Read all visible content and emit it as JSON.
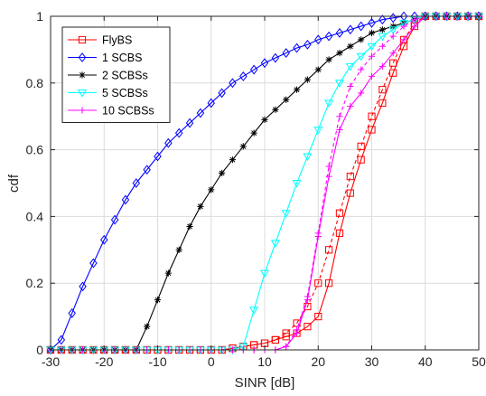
{
  "chart_data": {
    "type": "line",
    "title": "",
    "xlabel": "SINR [dB]",
    "ylabel": "cdf",
    "xlim": [
      -30,
      50
    ],
    "ylim": [
      0,
      1
    ],
    "xticks": [
      -30,
      -20,
      -10,
      0,
      10,
      20,
      30,
      40,
      50
    ],
    "yticks": [
      0,
      0.2,
      0.4,
      0.6,
      0.8,
      1
    ],
    "grid": true,
    "legend_position": "top-left",
    "series": [
      {
        "name": "FlyBS",
        "color": "#ff0000",
        "marker": "square",
        "line": "solid",
        "x": [
          -30,
          -28,
          -26,
          -24,
          -22,
          -20,
          -18,
          -16,
          -14,
          -12,
          -10,
          -8,
          -6,
          -4,
          -2,
          0,
          2,
          4,
          6,
          8,
          10,
          12,
          14,
          16,
          18,
          20,
          22,
          24,
          26,
          28,
          30,
          32,
          34,
          36,
          38,
          40,
          42,
          44,
          46,
          48,
          50
        ],
        "y": [
          0,
          0,
          0,
          0,
          0,
          0,
          0,
          0,
          0,
          0,
          0,
          0,
          0,
          0,
          0,
          0,
          0,
          0.005,
          0.01,
          0.015,
          0.02,
          0.03,
          0.04,
          0.05,
          0.07,
          0.1,
          0.2,
          0.35,
          0.47,
          0.57,
          0.66,
          0.74,
          0.83,
          0.91,
          0.97,
          1,
          1,
          1,
          1,
          1,
          1
        ]
      },
      {
        "name": "",
        "color": "#ff0000",
        "marker": "square",
        "line": "dashed",
        "x": [
          -30,
          -28,
          -26,
          -24,
          -22,
          -20,
          -18,
          -16,
          -14,
          -12,
          -10,
          -8,
          -6,
          -4,
          -2,
          0,
          2,
          4,
          6,
          8,
          10,
          12,
          14,
          16,
          18,
          20,
          22,
          24,
          26,
          28,
          30,
          32,
          34,
          36,
          38,
          40,
          42,
          44,
          46,
          48,
          50
        ],
        "y": [
          0,
          0,
          0,
          0,
          0,
          0,
          0,
          0,
          0,
          0,
          0,
          0,
          0,
          0,
          0,
          0,
          0,
          0.005,
          0.01,
          0.015,
          0.02,
          0.03,
          0.05,
          0.08,
          0.13,
          0.2,
          0.3,
          0.41,
          0.52,
          0.61,
          0.7,
          0.78,
          0.86,
          0.93,
          0.98,
          1,
          1,
          1,
          1,
          1,
          1
        ]
      },
      {
        "name": "1 SCBS",
        "color": "#0000ff",
        "marker": "diamond",
        "line": "solid",
        "x": [
          -30,
          -28,
          -26,
          -24,
          -22,
          -20,
          -18,
          -16,
          -14,
          -12,
          -10,
          -8,
          -6,
          -4,
          -2,
          0,
          2,
          4,
          6,
          8,
          10,
          12,
          14,
          16,
          18,
          20,
          22,
          24,
          26,
          28,
          30,
          32,
          34,
          36,
          38,
          40,
          42,
          44,
          46,
          48,
          50
        ],
        "y": [
          0,
          0.03,
          0.11,
          0.19,
          0.26,
          0.33,
          0.39,
          0.45,
          0.5,
          0.54,
          0.58,
          0.62,
          0.65,
          0.68,
          0.71,
          0.74,
          0.77,
          0.8,
          0.82,
          0.84,
          0.86,
          0.875,
          0.89,
          0.905,
          0.915,
          0.93,
          0.94,
          0.95,
          0.96,
          0.97,
          0.98,
          0.99,
          0.995,
          1,
          1,
          1,
          1,
          1,
          1,
          1,
          1
        ]
      },
      {
        "name": "2 SCBSs",
        "color": "#000000",
        "marker": "star",
        "line": "solid",
        "x": [
          -30,
          -28,
          -26,
          -24,
          -22,
          -20,
          -18,
          -16,
          -14,
          -12,
          -10,
          -8,
          -6,
          -4,
          -2,
          0,
          2,
          4,
          6,
          8,
          10,
          12,
          14,
          16,
          18,
          20,
          22,
          24,
          26,
          28,
          30,
          32,
          34,
          36,
          38,
          40,
          42,
          44,
          46,
          48,
          50
        ],
        "y": [
          0,
          0,
          0,
          0,
          0,
          0,
          0,
          0,
          0,
          0.07,
          0.15,
          0.23,
          0.3,
          0.37,
          0.43,
          0.48,
          0.53,
          0.57,
          0.61,
          0.65,
          0.69,
          0.72,
          0.75,
          0.78,
          0.81,
          0.84,
          0.87,
          0.89,
          0.91,
          0.93,
          0.95,
          0.96,
          0.97,
          0.98,
          0.99,
          1,
          1,
          1,
          1,
          1,
          1
        ]
      },
      {
        "name": "5 SCBSs",
        "color": "#00ffff",
        "marker": "triangle-down",
        "line": "solid",
        "x": [
          -30,
          -28,
          -26,
          -24,
          -22,
          -20,
          -18,
          -16,
          -14,
          -12,
          -10,
          -8,
          -6,
          -4,
          -2,
          0,
          2,
          4,
          6,
          8,
          10,
          12,
          14,
          16,
          18,
          20,
          22,
          24,
          26,
          28,
          30,
          32,
          34,
          36,
          38,
          40,
          42,
          44,
          46,
          48,
          50
        ],
        "y": [
          0,
          0,
          0,
          0,
          0,
          0,
          0,
          0,
          0,
          0,
          0,
          0,
          0,
          0,
          0,
          0,
          0,
          0,
          0.01,
          0.12,
          0.23,
          0.32,
          0.41,
          0.5,
          0.58,
          0.66,
          0.74,
          0.8,
          0.85,
          0.88,
          0.91,
          0.94,
          0.96,
          0.98,
          0.99,
          1,
          1,
          1,
          1,
          1,
          1
        ]
      },
      {
        "name": "10 SCBSs",
        "color": "#ff00ff",
        "marker": "plus",
        "line": "solid",
        "x": [
          -30,
          -28,
          -26,
          -24,
          -22,
          -20,
          -18,
          -16,
          -14,
          -12,
          -10,
          -8,
          -6,
          -4,
          -2,
          0,
          2,
          4,
          6,
          8,
          10,
          12,
          14,
          16,
          18,
          20,
          22,
          24,
          26,
          28,
          30,
          32,
          34,
          36,
          38,
          40,
          42,
          44,
          46,
          48,
          50
        ],
        "y": [
          0,
          0,
          0,
          0,
          0,
          0,
          0,
          0,
          0,
          0,
          0,
          0,
          0,
          0,
          0,
          0,
          0,
          0,
          0,
          0,
          0,
          0,
          0.01,
          0.05,
          0.15,
          0.34,
          0.52,
          0.66,
          0.73,
          0.77,
          0.82,
          0.85,
          0.89,
          0.93,
          0.97,
          1,
          1,
          1,
          1,
          1,
          1
        ]
      },
      {
        "name": "",
        "color": "#ff00ff",
        "marker": "plus",
        "line": "dashed",
        "x": [
          -30,
          -28,
          -26,
          -24,
          -22,
          -20,
          -18,
          -16,
          -14,
          -12,
          -10,
          -8,
          -6,
          -4,
          -2,
          0,
          2,
          4,
          6,
          8,
          10,
          12,
          14,
          16,
          18,
          20,
          22,
          24,
          26,
          28,
          30,
          32,
          34,
          36,
          38,
          40,
          42,
          44,
          46,
          48,
          50
        ],
        "y": [
          0,
          0,
          0,
          0,
          0,
          0,
          0,
          0,
          0,
          0,
          0,
          0,
          0,
          0,
          0,
          0,
          0,
          0,
          0,
          0,
          0,
          0,
          0.01,
          0.06,
          0.16,
          0.35,
          0.55,
          0.7,
          0.79,
          0.84,
          0.88,
          0.91,
          0.94,
          0.97,
          0.99,
          1,
          1,
          1,
          1,
          1,
          1
        ]
      }
    ]
  }
}
